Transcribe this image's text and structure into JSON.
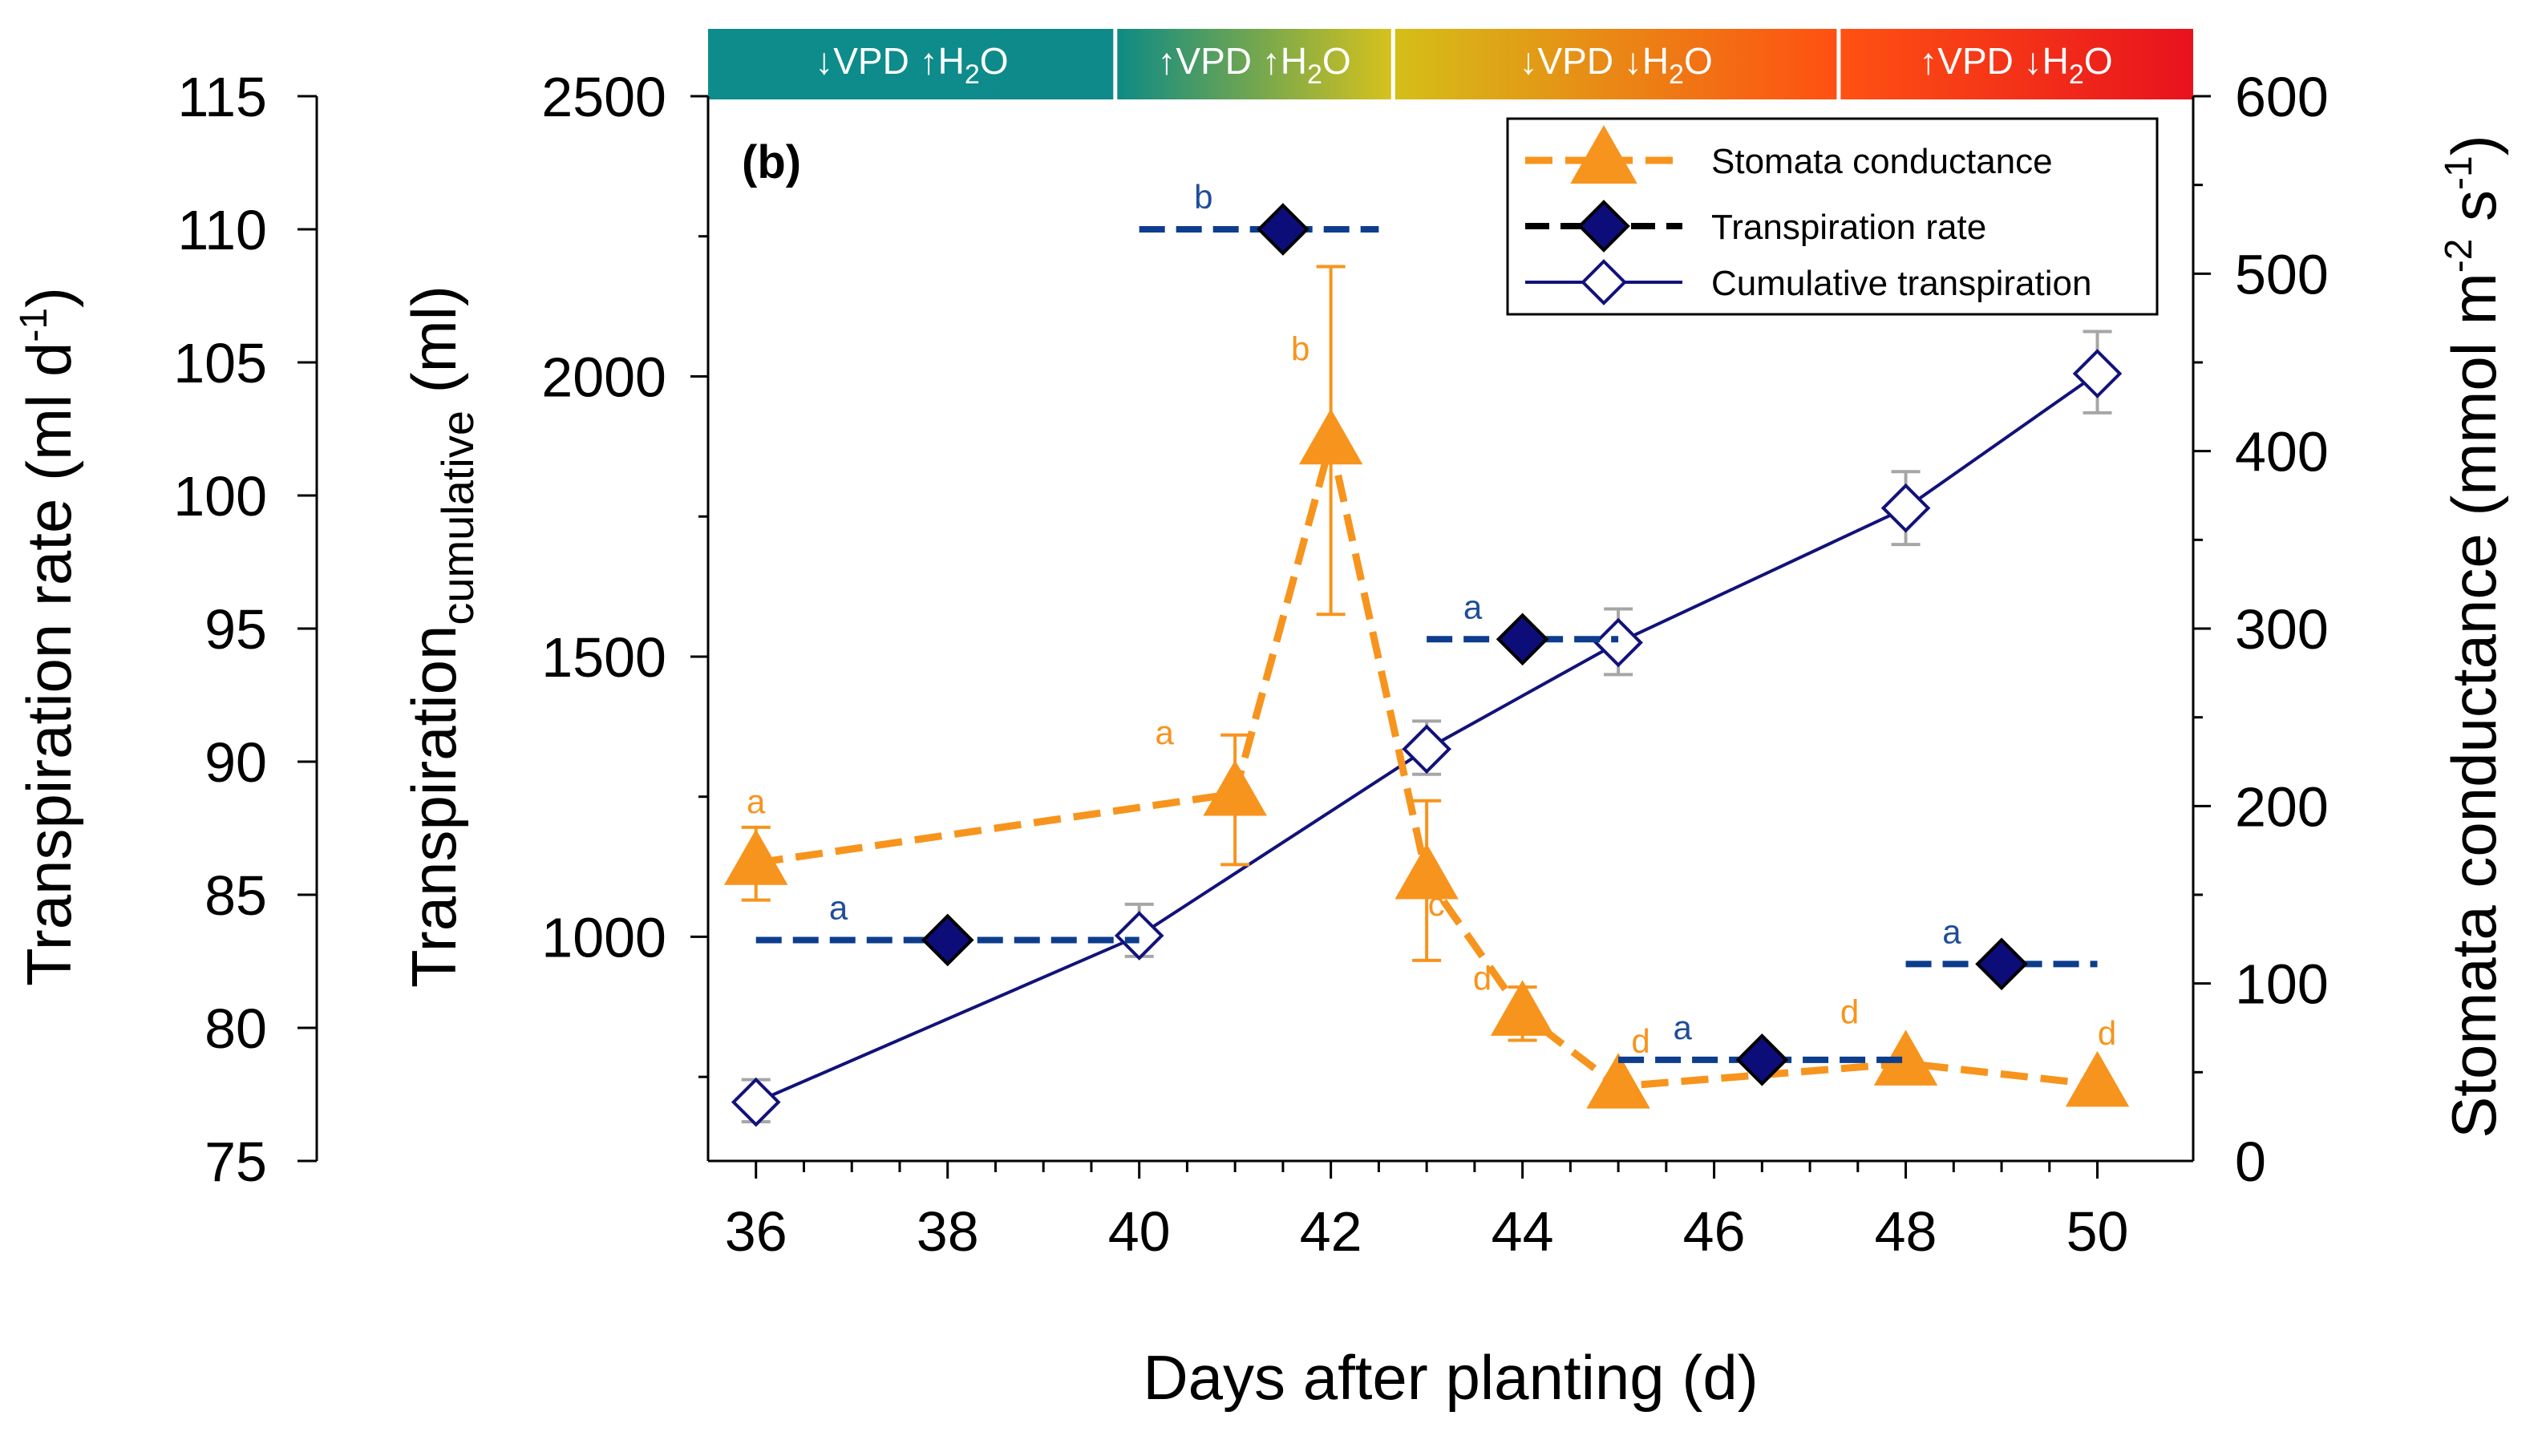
{
  "colors": {
    "stomata": "#F7941D",
    "transpiration_rate_marker": "#0D0D7A",
    "transpiration_rate_line": "#0D3D8C",
    "cumulative": "#12127A",
    "errorbar_grey": "#A6A6A6",
    "letter_blue": "#1F4E99",
    "letter_orange": "#F7941D"
  },
  "chart_data": {
    "type": "line",
    "panel_label": "(b)",
    "xlabel": "Days after planting (d)",
    "x_ticks": [
      36,
      38,
      40,
      42,
      44,
      46,
      48,
      50
    ],
    "xlim": [
      35.5,
      51
    ],
    "axes": {
      "left_outer": {
        "label_main": "Transpiration rate (ml d",
        "label_sup": "-1",
        "label_close": ")",
        "ticks": [
          75,
          80,
          85,
          90,
          95,
          100,
          105,
          110,
          115
        ],
        "ylim": [
          75,
          115
        ]
      },
      "left_inner": {
        "label_main": "Transpiration",
        "label_sub": "cumulative",
        "label_unit": " (ml)",
        "ticks": [
          1000,
          1500,
          2000,
          2500
        ],
        "ylim": [
          600,
          2500
        ]
      },
      "right": {
        "label_main": "Stomata conductance (mmol m",
        "label_sup1": "-2",
        "label_mid": " s",
        "label_sup2": "-1",
        "label_close": ")",
        "ticks": [
          0,
          100,
          200,
          300,
          400,
          500,
          600
        ],
        "ylim": [
          0,
          600
        ]
      }
    },
    "phases": [
      {
        "from": 35.5,
        "to": 39.75,
        "label": "↓VPD  ↑H",
        "sub": "2",
        "tail": "O",
        "gradient": [
          "#0E8C8C",
          "#0F8A8A"
        ]
      },
      {
        "from": 39.75,
        "to": 42.65,
        "label": "↑VPD  ↑H",
        "sub": "2",
        "tail": "O",
        "gradient": [
          "#0C8A86",
          "#D8C21B"
        ]
      },
      {
        "from": 42.65,
        "to": 47.3,
        "label": "↓VPD  ↓H",
        "sub": "2",
        "tail": "O",
        "gradient": [
          "#D4BF18",
          "#FF4F12"
        ]
      },
      {
        "from": 47.3,
        "to": 51,
        "label": "↑VPD  ↓H",
        "sub": "2",
        "tail": "O",
        "gradient": [
          "#FF5212",
          "#E8121E"
        ]
      }
    ],
    "legend": {
      "position": "top-right",
      "entries": [
        "Stomata conductance",
        "Transpiration rate",
        "Cumulative transpiration"
      ]
    },
    "series": [
      {
        "name": "Stomata conductance",
        "axis": "right",
        "style": "dashed",
        "marker": "triangle",
        "points": [
          {
            "x": 36,
            "y": 168,
            "err_low": 147,
            "err_high": 188,
            "letter": "a"
          },
          {
            "x": 41,
            "y": 207,
            "err_low": 167,
            "err_high": 240,
            "letter": "a"
          },
          {
            "x": 42,
            "y": 405,
            "err_low": 308,
            "err_high": 504,
            "letter": "b"
          },
          {
            "x": 43,
            "y": 160,
            "err_low": 113,
            "err_high": 203,
            "letter": "c"
          },
          {
            "x": 44,
            "y": 83,
            "err_low": 68,
            "err_high": 98,
            "letter": "d"
          },
          {
            "x": 45,
            "y": 42,
            "letter": "d"
          },
          {
            "x": 48,
            "y": 55,
            "letter": "d"
          },
          {
            "x": 50,
            "y": 43,
            "letter": "d"
          }
        ]
      },
      {
        "name": "Transpiration rate",
        "axis": "left_outer",
        "style": "dashed-segments",
        "marker": "filled-diamond",
        "points": [
          {
            "x": 38,
            "y": 83.3,
            "x_from": 36,
            "x_to": 40,
            "letter": "a"
          },
          {
            "x": 41.5,
            "y": 110,
            "x_from": 40,
            "x_to": 42.5,
            "letter": "b"
          },
          {
            "x": 44,
            "y": 94.6,
            "x_from": 43,
            "x_to": 45,
            "letter": "a"
          },
          {
            "x": 46.5,
            "y": 78.8,
            "x_from": 45,
            "x_to": 48,
            "letter": "a"
          },
          {
            "x": 49,
            "y": 82.4,
            "x_from": 48,
            "x_to": 50,
            "letter": "a"
          }
        ]
      },
      {
        "name": "Cumulative transpiration",
        "axis": "left_inner",
        "style": "solid",
        "marker": "open-diamond",
        "points": [
          {
            "x": 36,
            "y": 705,
            "err_low": 670,
            "err_high": 745
          },
          {
            "x": 40,
            "y": 1002,
            "err_low": 965,
            "err_high": 1058
          },
          {
            "x": 43,
            "y": 1335,
            "err_low": 1290,
            "err_high": 1385
          },
          {
            "x": 45,
            "y": 1525,
            "err_low": 1468,
            "err_high": 1585
          },
          {
            "x": 48,
            "y": 1765,
            "err_low": 1700,
            "err_high": 1830
          },
          {
            "x": 50,
            "y": 2005,
            "err_low": 1935,
            "err_high": 2080
          }
        ]
      }
    ]
  }
}
